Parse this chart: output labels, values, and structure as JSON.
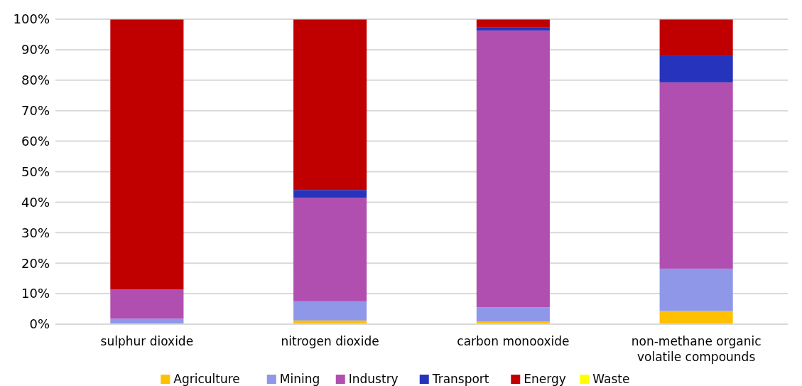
{
  "chart_data": {
    "type": "bar",
    "stacked": true,
    "categories": [
      "sulphur dioxide",
      "nitrogen dioxide",
      "carbon monooxide",
      "non-methane organic volatile compounds"
    ],
    "series": [
      {
        "name": "Agriculture",
        "color": "#ffc000",
        "values": [
          0,
          1.2,
          0.9,
          4.3
        ]
      },
      {
        "name": "Mining",
        "color": "#8e97e8",
        "values": [
          1.8,
          6.3,
          4.6,
          13.9
        ]
      },
      {
        "name": "Industry",
        "color": "#b04fb0",
        "values": [
          9.6,
          33.9,
          90.8,
          61.1
        ]
      },
      {
        "name": "Transport",
        "color": "#2633bd",
        "values": [
          0,
          2.6,
          1.1,
          8.6
        ]
      },
      {
        "name": "Energy",
        "color": "#c00000",
        "values": [
          88.5,
          55.9,
          2.5,
          12.0
        ]
      },
      {
        "name": "Waste",
        "color": "#ffff00",
        "values": [
          null,
          null,
          null,
          null
        ]
      }
    ],
    "ylim": [
      0,
      100
    ],
    "yticks": [
      {
        "value": 0,
        "label": "0%"
      },
      {
        "value": 10,
        "label": "10%"
      },
      {
        "value": 20,
        "label": "20%"
      },
      {
        "value": 30,
        "label": "30%"
      },
      {
        "value": 40,
        "label": "40%"
      },
      {
        "value": 50,
        "label": "50%"
      },
      {
        "value": 60,
        "label": "60%"
      },
      {
        "value": 70,
        "label": "70%"
      },
      {
        "value": 80,
        "label": "80%"
      },
      {
        "value": 90,
        "label": "90%"
      },
      {
        "value": 100,
        "label": "100%"
      }
    ],
    "grid": "y",
    "legend": "bottom"
  }
}
